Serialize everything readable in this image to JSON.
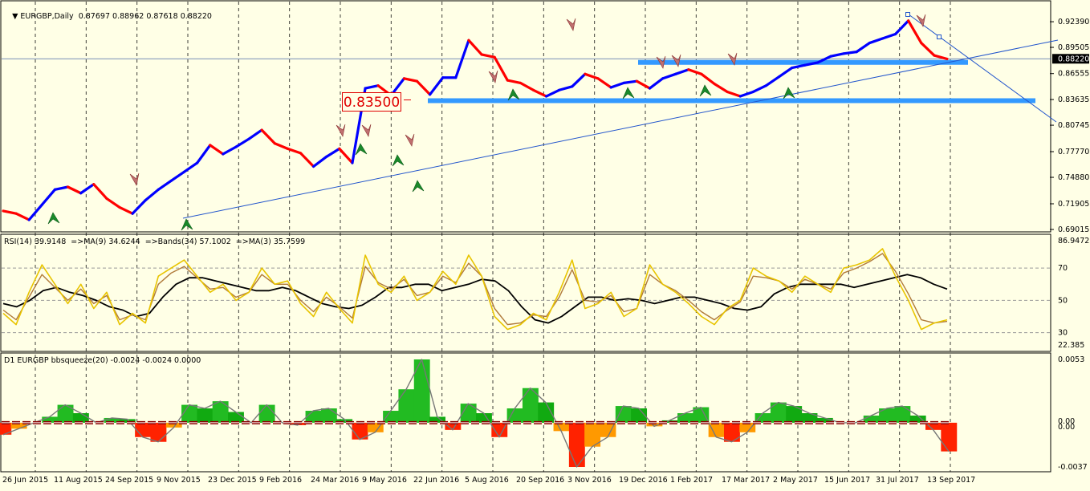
{
  "chart_data": [
    {
      "type": "line",
      "panel": "price",
      "header": {
        "symbol_label": "EURGBP,Daily",
        "ohlc": [
          "0.87697",
          "0.88962",
          "0.87618",
          "0.88220"
        ]
      },
      "price_axis_labels": [
        "0.92390",
        "0.89505",
        "0.86555",
        "0.83635",
        "0.80745",
        "0.77770",
        "0.74880",
        "0.71905",
        "0.69015"
      ],
      "ylim": [
        0.69015,
        0.9339
      ],
      "current_price_label": "0.88220",
      "current_price": 0.8822,
      "horizontal_level_label": "0.83500",
      "levels": [
        0.835,
        0.8782
      ],
      "x_labels": [
        "26 Jun 2015",
        "11 Aug 2015",
        "24 Sep 2015",
        "9 Nov 2015",
        "23 Dec 2015",
        "9 Feb 2016",
        "24 Mar 2016",
        "9 May 2016",
        "22 Jun 2016",
        "5 Aug 2016",
        "20 Sep 2016",
        "3 Nov 2016",
        "19 Dec 2016",
        "1 Feb 2017",
        "17 Mar 2017",
        "2 May 2017",
        "15 Jun 2017",
        "31 Jul 2017",
        "13 Sep 2017"
      ],
      "series": [
        {
          "values": [
            0.711,
            0.708,
            0.701,
            0.718,
            0.735,
            0.738,
            0.731,
            0.741,
            0.725,
            0.715,
            0.708,
            0.723,
            0.735,
            0.745,
            0.755,
            0.765,
            0.785,
            0.775,
            0.783,
            0.792,
            0.802,
            0.787,
            0.781,
            0.776,
            0.761,
            0.772,
            0.781,
            0.765,
            0.849,
            0.852,
            0.841,
            0.86,
            0.857,
            0.842,
            0.861,
            0.861,
            0.903,
            0.887,
            0.884,
            0.858,
            0.855,
            0.847,
            0.84,
            0.847,
            0.851,
            0.865,
            0.86,
            0.85,
            0.855,
            0.857,
            0.849,
            0.86,
            0.865,
            0.87,
            0.865,
            0.854,
            0.845,
            0.84,
            0.845,
            0.852,
            0.862,
            0.872,
            0.875,
            0.878,
            0.885,
            0.888,
            0.89,
            0.9,
            0.905,
            0.91,
            0.925,
            0.9,
            0.886,
            0.882
          ]
        }
      ]
    },
    {
      "type": "line",
      "panel": "rsi",
      "header": "RSI(14) 39.9148  =>MA(9) 34.6244  =>Bands(34) 57.1002  =>MA(3) 35.7599",
      "axis_labels": [
        "86.9472",
        "70",
        "50",
        "30",
        "22.385"
      ],
      "ylim": [
        22.385,
        86.9472
      ],
      "levels": [
        70,
        50,
        30
      ],
      "series": [
        {
          "color": "#e8c400",
          "values": [
            42,
            35,
            55,
            72,
            60,
            48,
            60,
            45,
            55,
            35,
            42,
            36,
            65,
            70,
            75,
            65,
            55,
            60,
            50,
            55,
            70,
            60,
            62,
            48,
            40,
            55,
            45,
            36,
            78,
            60,
            55,
            65,
            50,
            55,
            68,
            60,
            78,
            65,
            40,
            32,
            35,
            42,
            38,
            55,
            75,
            45,
            48,
            55,
            40,
            45,
            72,
            60,
            55,
            48,
            40,
            35,
            45,
            50,
            70,
            65,
            62,
            55,
            65,
            60,
            55,
            70,
            72,
            75,
            82,
            65,
            50,
            32,
            36,
            38
          ]
        },
        {
          "color": "#b07a3a",
          "values": [
            44,
            38,
            52,
            66,
            58,
            50,
            57,
            48,
            53,
            38,
            41,
            38,
            60,
            67,
            71,
            64,
            57,
            58,
            52,
            55,
            66,
            60,
            60,
            50,
            43,
            52,
            46,
            39,
            71,
            61,
            57,
            63,
            53,
            55,
            65,
            61,
            73,
            65,
            45,
            35,
            36,
            41,
            40,
            52,
            69,
            50,
            49,
            53,
            43,
            45,
            66,
            60,
            56,
            50,
            43,
            38,
            44,
            49,
            65,
            64,
            62,
            57,
            63,
            60,
            57,
            67,
            70,
            74,
            79,
            68,
            54,
            38,
            36,
            37
          ]
        },
        {
          "color": "#000000",
          "values": [
            48,
            46,
            50,
            56,
            58,
            55,
            53,
            50,
            46,
            44,
            40,
            42,
            52,
            60,
            64,
            64,
            62,
            60,
            58,
            56,
            56,
            58,
            56,
            52,
            48,
            46,
            45,
            47,
            52,
            58,
            58,
            60,
            60,
            56,
            58,
            60,
            63,
            62,
            56,
            46,
            38,
            36,
            40,
            46,
            52,
            52,
            50,
            51,
            50,
            48,
            50,
            52,
            52,
            50,
            48,
            45,
            44,
            46,
            54,
            58,
            60,
            60,
            60,
            60,
            58,
            60,
            62,
            64,
            66,
            64,
            60,
            57
          ]
        }
      ]
    },
    {
      "type": "area",
      "panel": "bbsqueeze",
      "header": "D1 EURGBP bbsqueeze(20) -0.0024 -0.0024 0.0000",
      "axis_labels": [
        "0.0053",
        "0.00",
        "0.00",
        "-0.0037"
      ],
      "ylim": [
        -0.0037,
        0.0053
      ],
      "values": [
        -0.001,
        -0.0005,
        0.0,
        0.0005,
        0.0015,
        0.0008,
        0.0,
        0.0004,
        0.0003,
        -0.0012,
        -0.0016,
        -0.0004,
        0.0015,
        0.0012,
        0.0018,
        0.0009,
        0.0,
        0.0015,
        0.0,
        -0.0002,
        0.001,
        0.0012,
        0.0003,
        -0.0014,
        -0.0008,
        0.001,
        0.0028,
        0.0053,
        0.0005,
        -0.0006,
        0.0016,
        0.0008,
        -0.0012,
        0.0012,
        0.0029,
        0.0017,
        -0.0007,
        -0.0037,
        -0.002,
        -0.0012,
        0.0014,
        0.0012,
        -0.0003,
        0.0002,
        0.0008,
        0.0013,
        -0.0012,
        -0.0016,
        -0.0008,
        0.0008,
        0.0017,
        0.0014,
        0.0008,
        0.0004,
        0.0,
        0.0,
        0.0006,
        0.0012,
        0.0014,
        0.0006,
        -0.0006,
        -0.0024
      ]
    }
  ]
}
